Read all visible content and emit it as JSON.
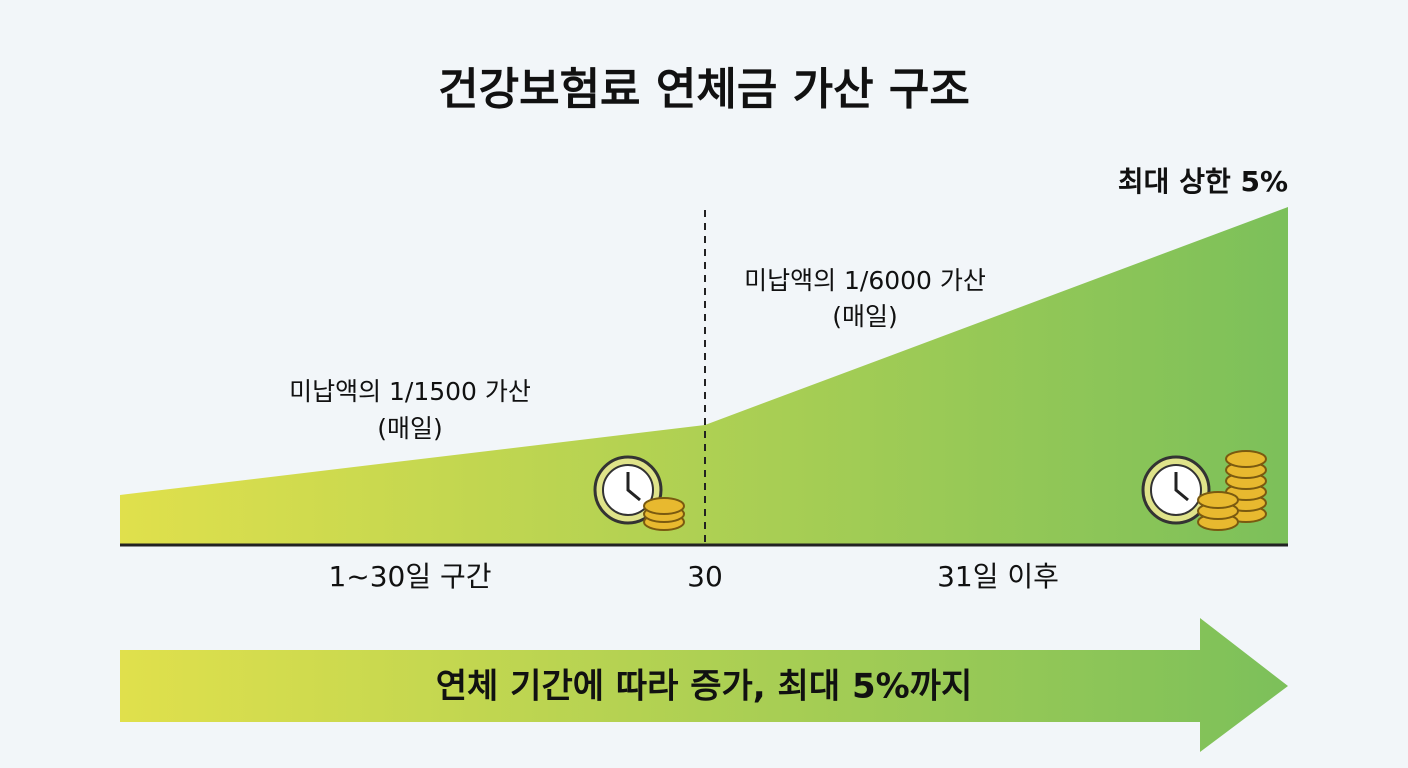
{
  "title": "건강보험료 연체금 가산 구조",
  "cap_label": "최대 상한 5%",
  "segments": [
    {
      "label": "미납액의 1/1500 가산",
      "sub": "(매일)",
      "period": "1~30일 구간"
    },
    {
      "label": "미납액의 1/6000 가산",
      "sub": "(매일)",
      "period": "31일 이후"
    }
  ],
  "divider_label": "30",
  "arrow_text": "연체 기간에 따라 증가, 최대 5%까지"
}
